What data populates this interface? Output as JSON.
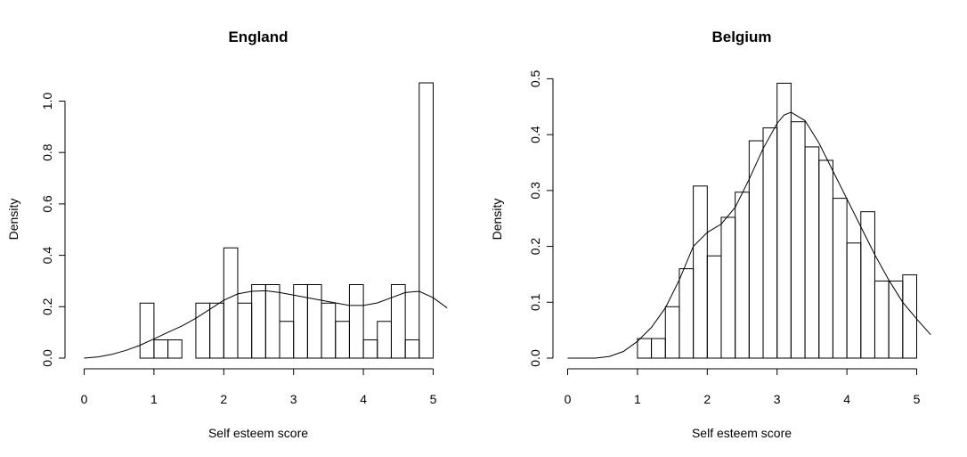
{
  "chart_data": [
    {
      "type": "bar",
      "title": "England",
      "xlabel": "Self esteem score",
      "ylabel": "Density",
      "xlim": [
        0,
        5.2
      ],
      "ylim": [
        0,
        1.08
      ],
      "xticks": [
        0,
        1,
        2,
        3,
        4,
        5
      ],
      "yticks": [
        0.0,
        0.2,
        0.4,
        0.6,
        0.8,
        1.0
      ],
      "ytick_labels": [
        "0.0",
        "0.2",
        "0.4",
        "0.6",
        "0.8",
        "1.0"
      ],
      "bin_width": 0.2,
      "bins": [
        {
          "x": 0.8,
          "density": 0.214
        },
        {
          "x": 1.0,
          "density": 0.071
        },
        {
          "x": 1.2,
          "density": 0.071
        },
        {
          "x": 1.4,
          "density": 0.0
        },
        {
          "x": 1.6,
          "density": 0.214
        },
        {
          "x": 1.8,
          "density": 0.214
        },
        {
          "x": 2.0,
          "density": 0.429
        },
        {
          "x": 2.2,
          "density": 0.214
        },
        {
          "x": 2.4,
          "density": 0.286
        },
        {
          "x": 2.6,
          "density": 0.286
        },
        {
          "x": 2.8,
          "density": 0.143
        },
        {
          "x": 3.0,
          "density": 0.286
        },
        {
          "x": 3.2,
          "density": 0.286
        },
        {
          "x": 3.4,
          "density": 0.214
        },
        {
          "x": 3.6,
          "density": 0.143
        },
        {
          "x": 3.8,
          "density": 0.286
        },
        {
          "x": 4.0,
          "density": 0.071
        },
        {
          "x": 4.2,
          "density": 0.143
        },
        {
          "x": 4.4,
          "density": 0.286
        },
        {
          "x": 4.6,
          "density": 0.071
        },
        {
          "x": 4.8,
          "density": 1.071
        }
      ],
      "density_curve": [
        [
          0.0,
          0.0
        ],
        [
          0.2,
          0.005
        ],
        [
          0.4,
          0.015
        ],
        [
          0.6,
          0.03
        ],
        [
          0.8,
          0.05
        ],
        [
          1.0,
          0.075
        ],
        [
          1.2,
          0.1
        ],
        [
          1.4,
          0.125
        ],
        [
          1.6,
          0.155
        ],
        [
          1.8,
          0.19
        ],
        [
          2.0,
          0.225
        ],
        [
          2.2,
          0.25
        ],
        [
          2.4,
          0.26
        ],
        [
          2.6,
          0.262
        ],
        [
          2.8,
          0.255
        ],
        [
          3.0,
          0.245
        ],
        [
          3.2,
          0.235
        ],
        [
          3.4,
          0.225
        ],
        [
          3.6,
          0.215
        ],
        [
          3.8,
          0.205
        ],
        [
          4.0,
          0.205
        ],
        [
          4.2,
          0.215
        ],
        [
          4.4,
          0.235
        ],
        [
          4.6,
          0.255
        ],
        [
          4.8,
          0.26
        ],
        [
          5.0,
          0.235
        ],
        [
          5.2,
          0.195
        ]
      ]
    },
    {
      "type": "bar",
      "title": "Belgium",
      "xlabel": "Self esteem score",
      "ylabel": "Density",
      "xlim": [
        0,
        5.2
      ],
      "ylim": [
        0,
        0.5
      ],
      "xticks": [
        0,
        1,
        2,
        3,
        4,
        5
      ],
      "yticks": [
        0.0,
        0.1,
        0.2,
        0.3,
        0.4,
        0.5
      ],
      "ytick_labels": [
        "0.0",
        "0.1",
        "0.2",
        "0.3",
        "0.4",
        "0.5"
      ],
      "bin_width": 0.2,
      "bins": [
        {
          "x": 1.0,
          "density": 0.035
        },
        {
          "x": 1.2,
          "density": 0.035
        },
        {
          "x": 1.4,
          "density": 0.092
        },
        {
          "x": 1.6,
          "density": 0.16
        },
        {
          "x": 1.8,
          "density": 0.308
        },
        {
          "x": 2.0,
          "density": 0.183
        },
        {
          "x": 2.2,
          "density": 0.252
        },
        {
          "x": 2.4,
          "density": 0.297
        },
        {
          "x": 2.6,
          "density": 0.389
        },
        {
          "x": 2.8,
          "density": 0.412
        },
        {
          "x": 3.0,
          "density": 0.492
        },
        {
          "x": 3.2,
          "density": 0.423
        },
        {
          "x": 3.4,
          "density": 0.378
        },
        {
          "x": 3.6,
          "density": 0.354
        },
        {
          "x": 3.8,
          "density": 0.286
        },
        {
          "x": 4.0,
          "density": 0.206
        },
        {
          "x": 4.2,
          "density": 0.262
        },
        {
          "x": 4.4,
          "density": 0.138
        },
        {
          "x": 4.6,
          "density": 0.138
        },
        {
          "x": 4.8,
          "density": 0.149
        }
      ],
      "density_curve": [
        [
          0.0,
          0.0
        ],
        [
          0.4,
          0.0
        ],
        [
          0.6,
          0.003
        ],
        [
          0.8,
          0.012
        ],
        [
          1.0,
          0.03
        ],
        [
          1.2,
          0.055
        ],
        [
          1.4,
          0.09
        ],
        [
          1.6,
          0.14
        ],
        [
          1.8,
          0.2
        ],
        [
          2.0,
          0.225
        ],
        [
          2.2,
          0.24
        ],
        [
          2.4,
          0.27
        ],
        [
          2.6,
          0.32
        ],
        [
          2.8,
          0.375
        ],
        [
          3.0,
          0.42
        ],
        [
          3.1,
          0.435
        ],
        [
          3.2,
          0.44
        ],
        [
          3.4,
          0.425
        ],
        [
          3.6,
          0.385
        ],
        [
          3.8,
          0.335
        ],
        [
          4.0,
          0.285
        ],
        [
          4.2,
          0.235
        ],
        [
          4.4,
          0.185
        ],
        [
          4.6,
          0.14
        ],
        [
          4.8,
          0.1
        ],
        [
          5.0,
          0.07
        ],
        [
          5.2,
          0.042
        ]
      ]
    }
  ]
}
